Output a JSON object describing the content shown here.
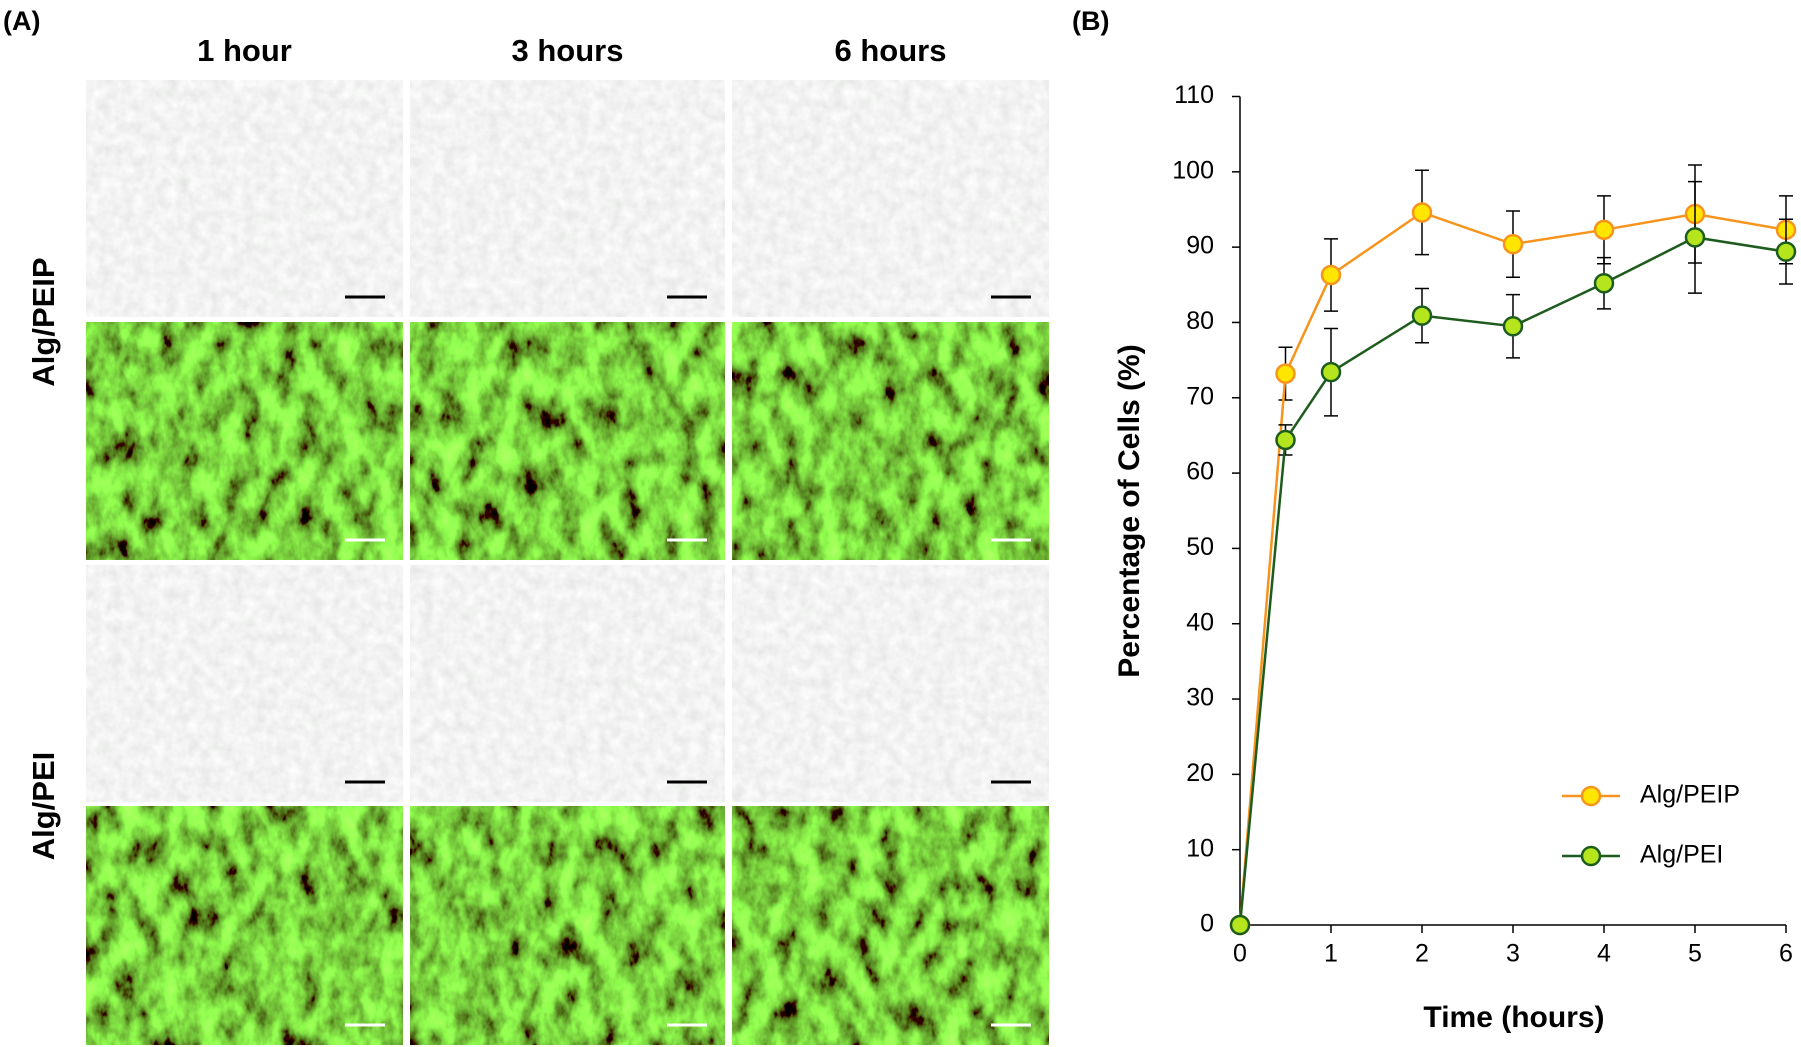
{
  "panel_a": {
    "label": "(A)",
    "columns": [
      "1 hour",
      "3 hours",
      "6 hours"
    ],
    "rows": [
      "Alg/PEIP",
      "Alg/PEI"
    ]
  },
  "panel_b_label": "(B)",
  "chart_data": {
    "type": "line",
    "x_label": "Time (hours)",
    "y_label": "Percentage of Cells (%)",
    "x": [
      0,
      0.5,
      1,
      2,
      3,
      4,
      5,
      6
    ],
    "xlim": [
      0,
      6
    ],
    "xticks": [
      0,
      1,
      2,
      3,
      4,
      5,
      6
    ],
    "ylim": [
      0,
      110
    ],
    "yticks": [
      0,
      10,
      20,
      30,
      40,
      50,
      60,
      70,
      80,
      90,
      100,
      110
    ],
    "grid": false,
    "legend": "lower right",
    "series": [
      {
        "name": "Alg/PEIP",
        "color": "#f7941d",
        "marker_color": "#ffe600",
        "values": [
          0,
          73.2,
          86.3,
          94.6,
          90.4,
          92.3,
          94.4,
          92.3
        ],
        "errors": [
          0,
          3.5,
          4.8,
          5.6,
          4.4,
          4.5,
          6.5,
          4.5
        ]
      },
      {
        "name": "Alg/PEI",
        "color": "#1e5c1e",
        "marker_color": "#b5e61d",
        "values": [
          0,
          64.4,
          73.4,
          80.9,
          79.5,
          85.2,
          91.3,
          89.4
        ],
        "errors": [
          0,
          2.0,
          5.8,
          3.6,
          4.2,
          3.4,
          7.4,
          4.3
        ]
      }
    ]
  }
}
